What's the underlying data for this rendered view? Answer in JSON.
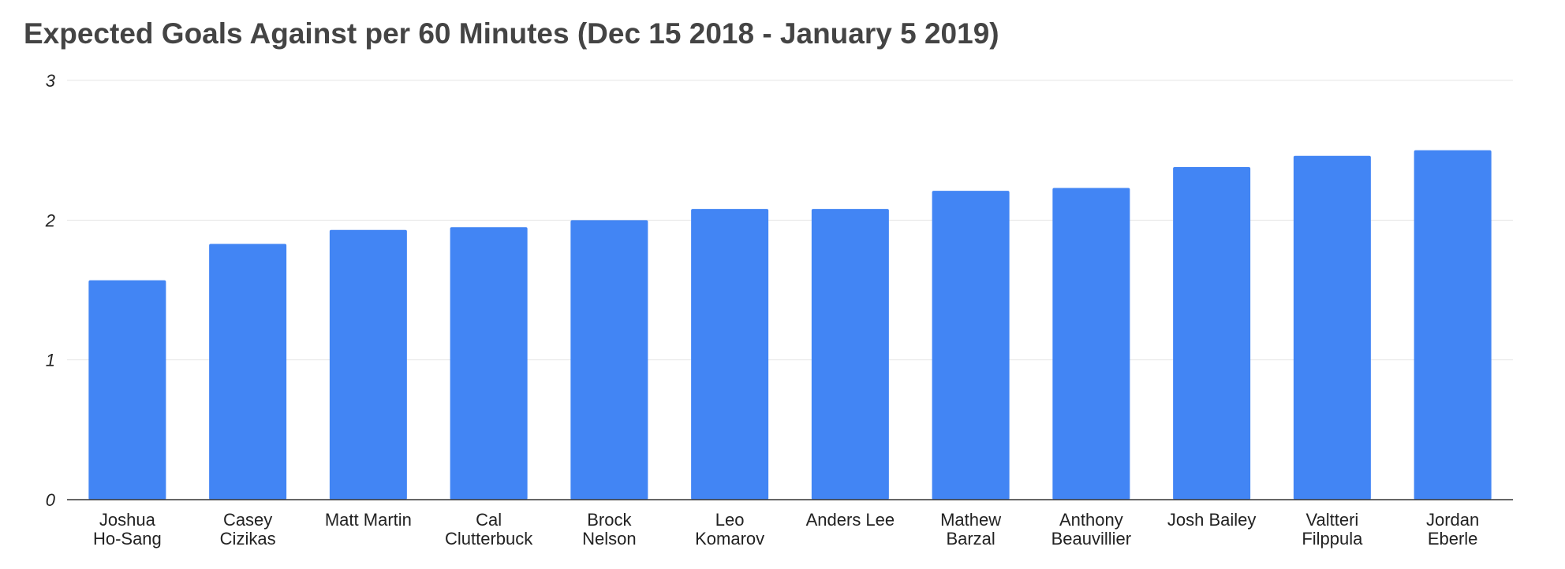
{
  "chart_data": {
    "type": "bar",
    "title": "Expected Goals Against per 60 Minutes (Dec 15 2018 - January 5 2019)",
    "xlabel": "",
    "ylabel": "",
    "ylim": [
      0,
      3
    ],
    "yticks": [
      "0",
      "1",
      "2",
      "3"
    ],
    "grid": true,
    "legend": "none",
    "bar_color": "#4285f4",
    "categories": [
      [
        "Joshua",
        "Ho-Sang"
      ],
      [
        "Casey",
        "Cizikas"
      ],
      [
        "Matt Martin"
      ],
      [
        "Cal",
        "Clutterbuck"
      ],
      [
        "Brock",
        "Nelson"
      ],
      [
        "Leo",
        "Komarov"
      ],
      [
        "Anders Lee"
      ],
      [
        "Mathew",
        "Barzal"
      ],
      [
        "Anthony",
        "Beauvillier"
      ],
      [
        "Josh Bailey"
      ],
      [
        "Valtteri",
        "Filppula"
      ],
      [
        "Jordan",
        "Eberle"
      ]
    ],
    "values": [
      1.57,
      1.83,
      1.93,
      1.95,
      2.0,
      2.08,
      2.08,
      2.21,
      2.23,
      2.38,
      2.46,
      2.5
    ]
  }
}
